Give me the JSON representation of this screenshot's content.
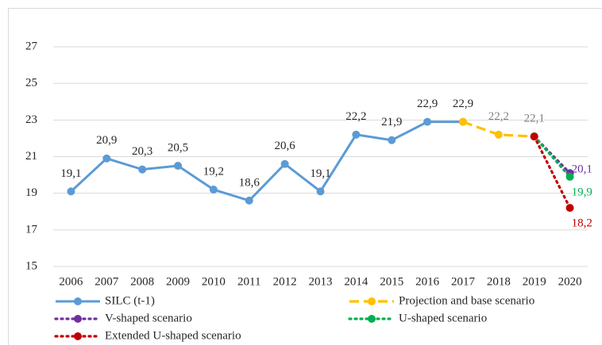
{
  "chart_data": {
    "type": "line",
    "categories": [
      "2006",
      "2007",
      "2008",
      "2009",
      "2010",
      "2011",
      "2012",
      "2013",
      "2014",
      "2015",
      "2016",
      "2017",
      "2018",
      "2019",
      "2020"
    ],
    "series": [
      {
        "name": "SILC (t-1)",
        "color": "#5b9bd5",
        "label_color": "#262626",
        "style": "solid",
        "values": [
          19.1,
          20.9,
          20.3,
          20.5,
          19.2,
          18.6,
          20.6,
          19.1,
          22.2,
          21.9,
          22.9,
          22.9,
          null,
          null,
          null
        ],
        "value_labels": [
          "19,1",
          "20,9",
          "20,3",
          "20,5",
          "19,2",
          "18,6",
          "20,6",
          "19,1",
          "22,2",
          "21,9",
          "22,9",
          "22,9",
          null,
          null,
          null
        ]
      },
      {
        "name": "Projection and base scenario",
        "color": "#ffc000",
        "label_color": "#7f7f7f",
        "style": "dashed",
        "values": [
          null,
          null,
          null,
          null,
          null,
          null,
          null,
          null,
          null,
          null,
          null,
          22.9,
          22.2,
          22.1,
          null
        ],
        "value_labels": [
          null,
          null,
          null,
          null,
          null,
          null,
          null,
          null,
          null,
          null,
          null,
          null,
          "22,2",
          "22,1",
          null
        ]
      },
      {
        "name": "V-shaped scenario",
        "color": "#7030a0",
        "label_color": "#7030a0",
        "style": "dotted",
        "values": [
          null,
          null,
          null,
          null,
          null,
          null,
          null,
          null,
          null,
          null,
          null,
          null,
          null,
          22.1,
          20.1
        ],
        "value_labels": [
          null,
          null,
          null,
          null,
          null,
          null,
          null,
          null,
          null,
          null,
          null,
          null,
          null,
          null,
          "20,1"
        ]
      },
      {
        "name": "U-shaped scenario",
        "color": "#00b050",
        "label_color": "#00b050",
        "style": "dotted",
        "values": [
          null,
          null,
          null,
          null,
          null,
          null,
          null,
          null,
          null,
          null,
          null,
          null,
          null,
          22.1,
          19.9
        ],
        "value_labels": [
          null,
          null,
          null,
          null,
          null,
          null,
          null,
          null,
          null,
          null,
          null,
          null,
          null,
          null,
          "19,9"
        ]
      },
      {
        "name": "Extended U-shaped scenario",
        "color": "#c00000",
        "label_color": "#c00000",
        "style": "dotted",
        "values": [
          null,
          null,
          null,
          null,
          null,
          null,
          null,
          null,
          null,
          null,
          null,
          null,
          null,
          22.1,
          18.2
        ],
        "value_labels": [
          null,
          null,
          null,
          null,
          null,
          null,
          null,
          null,
          null,
          null,
          null,
          null,
          null,
          null,
          "18,2"
        ]
      }
    ],
    "ylim": [
      15,
      29
    ],
    "yticks": [
      15,
      17,
      19,
      21,
      23,
      25,
      27
    ],
    "grid": true,
    "legend": "bottom"
  }
}
